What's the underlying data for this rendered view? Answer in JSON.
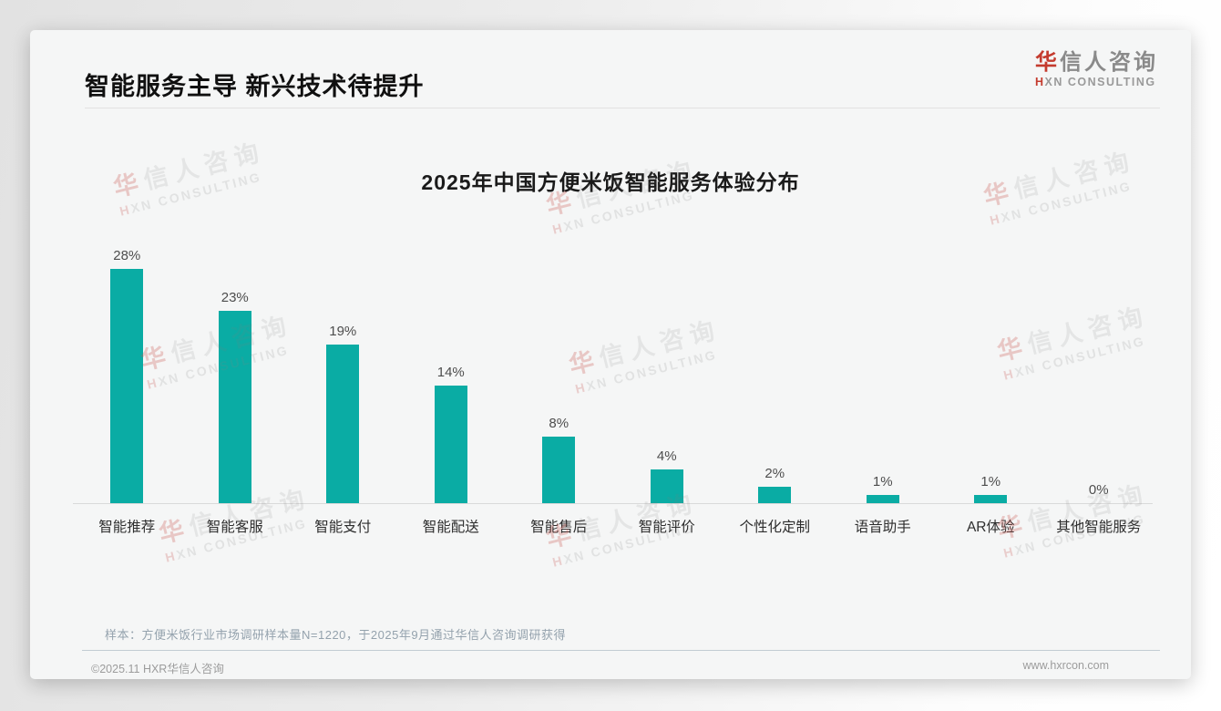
{
  "page": {
    "title": "智能服务主导 新兴技术待提升",
    "logo": {
      "cn_first": "华",
      "cn_rest": "信人咨询",
      "en_first": "H",
      "en_rest": "XN CONSULTING"
    },
    "note": "样本：方便米饭行业市场调研样本量N=1220，于2025年9月通过华信人咨询调研获得",
    "footer_left": "©2025.11 HXR华信人咨询",
    "footer_right": "www.hxrcon.com",
    "watermark": {
      "line1_first": "华",
      "line1_rest": "信人咨询",
      "line2_first": "H",
      "line2_rest": "XN CONSULTING"
    }
  },
  "chart_data": {
    "type": "bar",
    "title": "2025年中国方便米饭智能服务体验分布",
    "categories": [
      "智能推荐",
      "智能客服",
      "智能支付",
      "智能配送",
      "智能售后",
      "智能评价",
      "个性化定制",
      "语音助手",
      "AR体验",
      "其他智能服务"
    ],
    "values": [
      28,
      23,
      19,
      14,
      8,
      4,
      2,
      1,
      1,
      0
    ],
    "value_labels": [
      "28%",
      "23%",
      "19%",
      "14%",
      "8%",
      "4%",
      "2%",
      "1%",
      "1%",
      "0%"
    ],
    "bar_color": "#0aaca4",
    "xlabel": "",
    "ylabel": "",
    "ylim": [
      0,
      30
    ],
    "grid": false,
    "legend": false,
    "value_labels_position": "above-bars"
  }
}
